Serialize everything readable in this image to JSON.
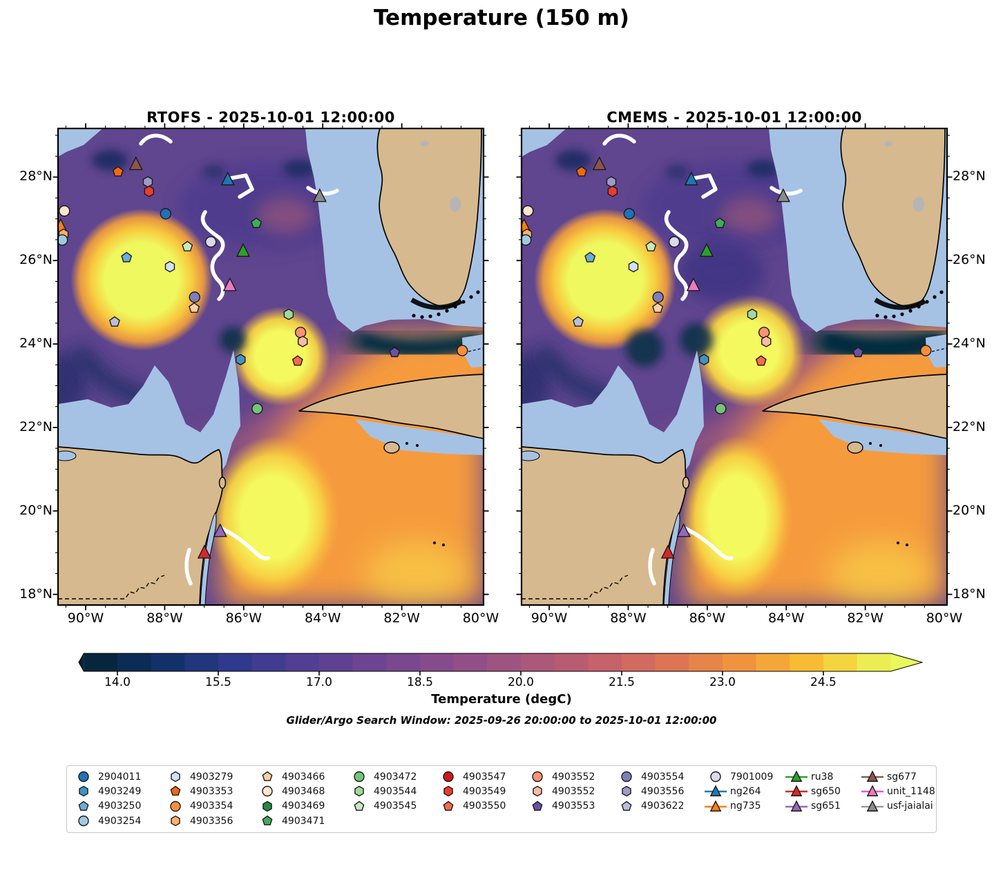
{
  "figure_title": "Temperature (150 m)",
  "subtitle": "Glider/Argo Search Window: 2025-09-26 20:00:00 to 2025-10-01 12:00:00",
  "map_colors": {
    "shallow": "#a5c2e4",
    "land": "#d6b98e",
    "land_gray": "#b5b5b5",
    "coast": "#000000",
    "contour": "#ffffff",
    "field_base": "#60458f",
    "orange": "#f69b3c",
    "yellow": "#eff85e",
    "navy": "#0d3048",
    "dark_band": "#052a3d"
  },
  "chart_data": {
    "type": "map-contourf",
    "panels": [
      {
        "key": "rtofs",
        "title": "RTOFS - 2025-10-01 12:00:00"
      },
      {
        "key": "cmems",
        "title": "CMEMS - 2025-10-01 12:00:00"
      }
    ],
    "lon_range": [
      -90.7,
      -79.9
    ],
    "lat_range": [
      17.7,
      29.2
    ],
    "lon_tick_values": [
      -90,
      -88,
      -86,
      -84,
      -82,
      -80
    ],
    "lon_tick_labels": [
      "90°W",
      "88°W",
      "86°W",
      "84°W",
      "82°W",
      "80°W"
    ],
    "lat_tick_values": [
      28,
      26,
      24,
      22,
      20,
      18
    ],
    "lat_tick_labels": [
      "28°N",
      "26°N",
      "24°N",
      "22°N",
      "20°N",
      "18°N"
    ],
    "colorbar": {
      "label": "Temperature (degC)",
      "vmin": 13.5,
      "vmax": 25.5,
      "step": 0.5,
      "tick_values": [
        14.0,
        15.5,
        17.0,
        18.5,
        20.0,
        21.5,
        23.0,
        24.5
      ],
      "tick_labels": [
        "14.0",
        "15.5",
        "17.0",
        "18.5",
        "20.0",
        "21.5",
        "23.0",
        "24.5"
      ],
      "extend": "both",
      "colormap": [
        "#042333",
        "#0e3063",
        "#2d3a8c",
        "#533e93",
        "#6f4591",
        "#8a4d8a",
        "#a6567e",
        "#c2606c",
        "#dd7454",
        "#f0953e",
        "#f9c232",
        "#e8fa5b"
      ]
    },
    "legend": {
      "columns": [
        [
          {
            "label": "2904011",
            "shape": "circle",
            "color": "#2171b5"
          },
          {
            "label": "4903249",
            "shape": "hexagon",
            "color": "#4292c6"
          },
          {
            "label": "4903250",
            "shape": "pentagon",
            "color": "#6baed6"
          },
          {
            "label": "4903254",
            "shape": "circle",
            "color": "#9ecae1"
          }
        ],
        [
          {
            "label": "4903279",
            "shape": "hexagon",
            "color": "#cfe1f2"
          },
          {
            "label": "4903353",
            "shape": "pentagon",
            "color": "#f16913"
          },
          {
            "label": "4903354",
            "shape": "circle",
            "color": "#fd8d3c"
          },
          {
            "label": "4903356",
            "shape": "hexagon",
            "color": "#fdae6b"
          }
        ],
        [
          {
            "label": "4903466",
            "shape": "pentagon",
            "color": "#fdd0a2"
          },
          {
            "label": "4903468",
            "shape": "circle",
            "color": "#fee6ce"
          },
          {
            "label": "4903469",
            "shape": "hexagon",
            "color": "#238b45"
          },
          {
            "label": "4903471",
            "shape": "pentagon",
            "color": "#41ab5d"
          }
        ],
        [
          {
            "label": "4903472",
            "shape": "circle",
            "color": "#74c476"
          },
          {
            "label": "4903544",
            "shape": "hexagon",
            "color": "#a1d99b"
          },
          {
            "label": "4903545",
            "shape": "pentagon",
            "color": "#c7e9c0"
          }
        ],
        [
          {
            "label": "4903547",
            "shape": "circle",
            "color": "#cb181d"
          },
          {
            "label": "4903549",
            "shape": "hexagon",
            "color": "#ef3b2c"
          },
          {
            "label": "4903550",
            "shape": "pentagon",
            "color": "#fb6a4a"
          }
        ],
        [
          {
            "label": "4903552",
            "shape": "circle",
            "color": "#fc9272"
          },
          {
            "label": "4903552",
            "shape": "hexagon",
            "color": "#fcbba1"
          },
          {
            "label": "4903553",
            "shape": "pentagon",
            "color": "#6a51a3"
          }
        ],
        [
          {
            "label": "4903554",
            "shape": "circle",
            "color": "#807dba"
          },
          {
            "label": "4903556",
            "shape": "hexagon",
            "color": "#9e9ac8"
          },
          {
            "label": "4903622",
            "shape": "pentagon",
            "color": "#bcbddc"
          }
        ],
        [
          {
            "label": "7901009",
            "shape": "circle",
            "color": "#dadaeb"
          },
          {
            "label": "ng264",
            "shape": "glider",
            "color": "#1f78b4",
            "line": "#1f78b4"
          },
          {
            "label": "ng735",
            "shape": "glider",
            "color": "#ff7f0e",
            "line": "#ff7f0e"
          }
        ],
        [
          {
            "label": "ru38",
            "shape": "glider",
            "color": "#2ca02c",
            "line": "#2ca02c"
          },
          {
            "label": "sg650",
            "shape": "glider",
            "color": "#d62728",
            "line": "#d62728"
          },
          {
            "label": "sg651",
            "shape": "glider",
            "color": "#9467bd",
            "line": "#9467bd"
          }
        ],
        [
          {
            "label": "sg677",
            "shape": "glider",
            "color": "#8c564b",
            "line": "#8c564b"
          },
          {
            "label": "unit_1148",
            "shape": "glider",
            "color": "#ee79c3",
            "line": "#f053c6"
          },
          {
            "label": "usf-jaialai",
            "shape": "glider",
            "color": "#8a8a8a",
            "line": "#9a9a9a"
          }
        ]
      ]
    },
    "platform_positions": [
      {
        "id": "4903353",
        "shape": "pentagon",
        "color": "#f16913",
        "fx": 0.141,
        "fy": 0.091,
        "lon": -89.2,
        "lat": 28.1
      },
      {
        "id": "sg677",
        "shape": "triangle",
        "color": "#8c564b",
        "fx": 0.183,
        "fy": 0.075,
        "lon": -88.7,
        "lat": 28.3
      },
      {
        "id": "4903556",
        "shape": "hexagon",
        "color": "#9e9ac8",
        "fx": 0.211,
        "fy": 0.112,
        "lon": -88.4,
        "lat": 27.9
      },
      {
        "id": "4903549",
        "shape": "hexagon",
        "color": "#ef3b2c",
        "fx": 0.214,
        "fy": 0.132,
        "lon": -88.4,
        "lat": 27.7
      },
      {
        "id": "ng264",
        "shape": "triangle",
        "color": "#1f78b4",
        "fx": 0.399,
        "fy": 0.107,
        "lon": -86.4,
        "lat": 27.9
      },
      {
        "id": "usf-jaialai",
        "shape": "triangle",
        "color": "#8a8a8a",
        "fx": 0.615,
        "fy": 0.142,
        "lon": -84.1,
        "lat": 27.5
      },
      {
        "id": "2904011",
        "shape": "circle",
        "color": "#2171b5",
        "fx": 0.253,
        "fy": 0.179,
        "lon": -88.0,
        "lat": 27.1
      },
      {
        "id": "4903471",
        "shape": "pentagon",
        "color": "#41ab5d",
        "fx": 0.466,
        "fy": 0.199,
        "lon": -85.7,
        "lat": 26.9
      },
      {
        "id": "7901009",
        "shape": "circle",
        "color": "#dadaeb",
        "fx": 0.359,
        "fy": 0.238,
        "lon": -86.8,
        "lat": 26.4
      },
      {
        "id": "ru38",
        "shape": "triangle",
        "color": "#2ca02c",
        "fx": 0.435,
        "fy": 0.257,
        "lon": -86.0,
        "lat": 26.2
      },
      {
        "id": "4903545",
        "shape": "pentagon",
        "color": "#c7e9c0",
        "fx": 0.304,
        "fy": 0.248,
        "lon": -87.4,
        "lat": 26.3
      },
      {
        "id": "4903250",
        "shape": "pentagon",
        "color": "#6baed6",
        "fx": 0.161,
        "fy": 0.271,
        "lon": -89.0,
        "lat": 26.1
      },
      {
        "id": "4903279",
        "shape": "hexagon",
        "color": "#cfe1f2",
        "fx": 0.263,
        "fy": 0.29,
        "lon": -87.9,
        "lat": 25.8
      },
      {
        "id": "unit_1148",
        "shape": "triangle",
        "color": "#ee79c3",
        "fx": 0.404,
        "fy": 0.329,
        "lon": -86.3,
        "lat": 25.4
      },
      {
        "id": "4903554",
        "shape": "circle",
        "color": "#807dba",
        "fx": 0.321,
        "fy": 0.354,
        "lon": -87.2,
        "lat": 25.1
      },
      {
        "id": "4903466",
        "shape": "pentagon",
        "color": "#fdd0a2",
        "fx": 0.32,
        "fy": 0.377,
        "lon": -87.3,
        "lat": 24.8
      },
      {
        "id": "4903622",
        "shape": "pentagon",
        "color": "#bcbddc",
        "fx": 0.133,
        "fy": 0.406,
        "lon": -89.3,
        "lat": 24.5
      },
      {
        "id": "4903544",
        "shape": "hexagon",
        "color": "#a1d99b",
        "fx": 0.542,
        "fy": 0.39,
        "lon": -84.9,
        "lat": 24.7
      },
      {
        "id": "4903552",
        "shape": "circle",
        "color": "#fc9272",
        "fx": 0.57,
        "fy": 0.428,
        "lon": -84.6,
        "lat": 24.3
      },
      {
        "id": "4903552",
        "shape": "hexagon",
        "color": "#fcbba1",
        "fx": 0.575,
        "fy": 0.447,
        "lon": -84.5,
        "lat": 24.0
      },
      {
        "id": "4903249",
        "shape": "hexagon",
        "color": "#4292c6",
        "fx": 0.429,
        "fy": 0.485,
        "lon": -86.1,
        "lat": 23.6
      },
      {
        "id": "4903550",
        "shape": "pentagon",
        "color": "#fb6a4a",
        "fx": 0.563,
        "fy": 0.488,
        "lon": -84.6,
        "lat": 23.6
      },
      {
        "id": "4903553",
        "shape": "pentagon",
        "color": "#6a51a3",
        "fx": 0.791,
        "fy": 0.47,
        "lon": -82.2,
        "lat": 23.8
      },
      {
        "id": "4903354",
        "shape": "circle",
        "color": "#fd8d3c",
        "fx": 0.95,
        "fy": 0.466,
        "lon": -80.5,
        "lat": 23.8
      },
      {
        "id": "4903472",
        "shape": "circle",
        "color": "#74c476",
        "fx": 0.468,
        "fy": 0.588,
        "lon": -85.7,
        "lat": 22.4
      },
      {
        "id": "sg651",
        "shape": "triangle",
        "color": "#9467bd",
        "fx": 0.381,
        "fy": 0.845,
        "lon": -86.6,
        "lat": 19.5
      },
      {
        "id": "sg650",
        "shape": "triangle",
        "color": "#d62728",
        "fx": 0.344,
        "fy": 0.89,
        "lon": -87.0,
        "lat": 19.0
      },
      {
        "id": "4903468",
        "shape": "circle",
        "color": "#fee6ce",
        "fx": 0.015,
        "fy": 0.173,
        "lon": -90.5,
        "lat": 27.2
      },
      {
        "id": "ng735",
        "shape": "triangle",
        "color": "#ff7f0e",
        "fx": 0.006,
        "fy": 0.205,
        "lon": -90.6,
        "lat": 26.8
      },
      {
        "id": "4903356",
        "shape": "hexagon",
        "color": "#fdae6b",
        "fx": 0.013,
        "fy": 0.222,
        "lon": -90.6,
        "lat": 26.6
      },
      {
        "id": "4903254",
        "shape": "circle",
        "color": "#9ecae1",
        "fx": 0.01,
        "fy": 0.234,
        "lon": -90.6,
        "lat": 26.5
      }
    ]
  }
}
